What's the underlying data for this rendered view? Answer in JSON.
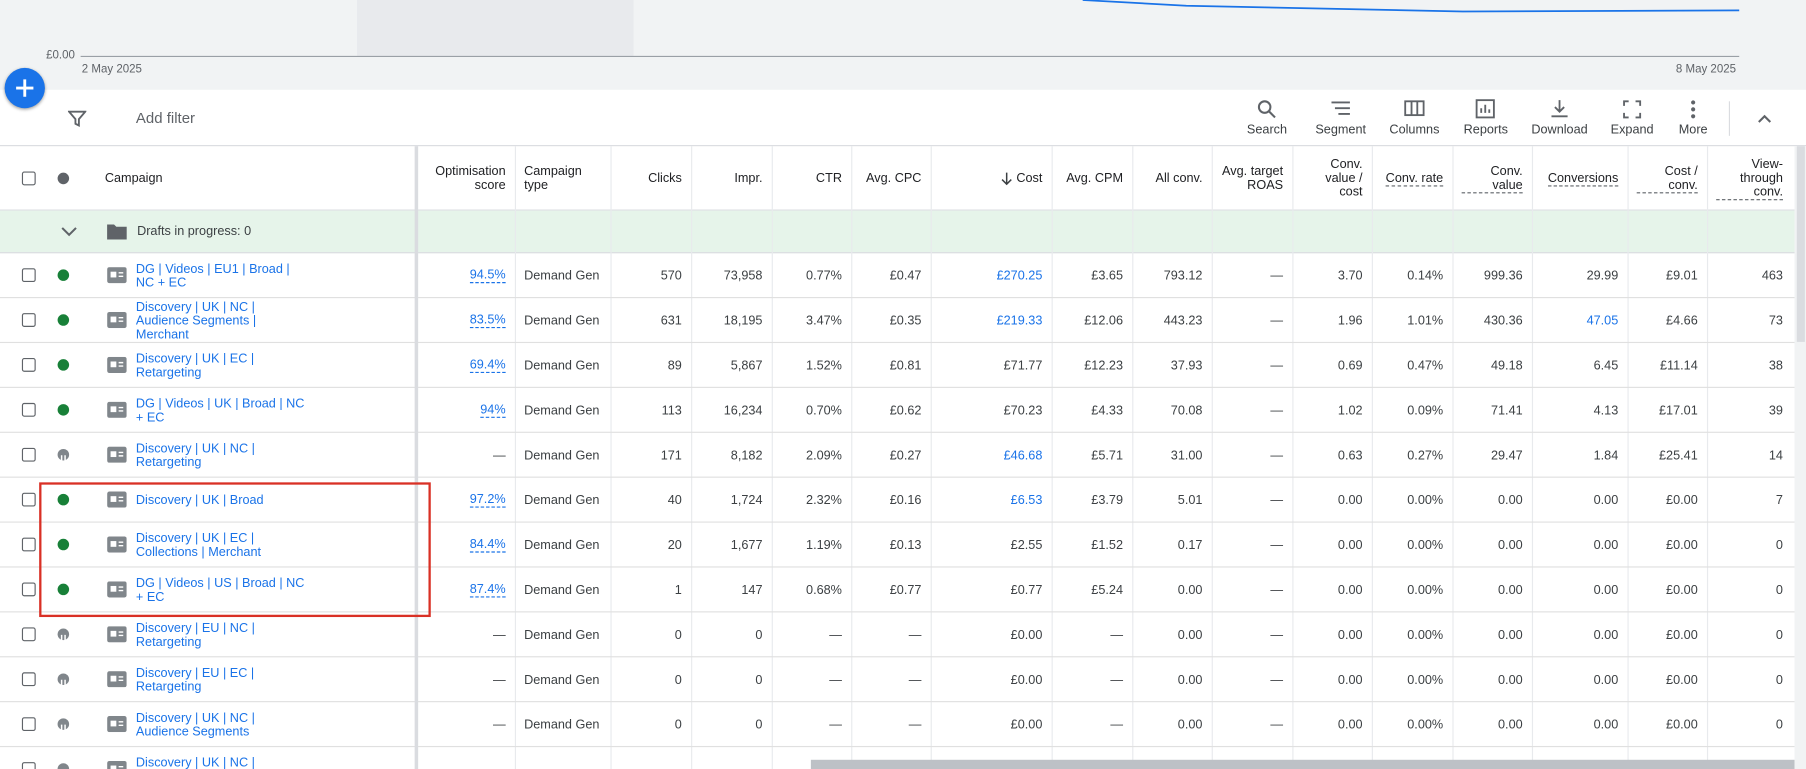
{
  "chart": {
    "y_label": "£0.00",
    "x_start": "2 May 2025",
    "x_end": "8 May 2025"
  },
  "toolbar": {
    "filter": "Add filter",
    "buttons": [
      "Search",
      "Segment",
      "Columns",
      "Reports",
      "Download",
      "Expand",
      "More"
    ]
  },
  "table": {
    "columns": [
      "Campaign",
      "Optimisation score",
      "Campaign type",
      "Clicks",
      "Impr.",
      "CTR",
      "Avg. CPC",
      "Cost",
      "Avg. CPM",
      "All conv.",
      "Avg. target ROAS",
      "Conv. value / cost",
      "Conv. rate",
      "Conv. value",
      "Conversions",
      "Cost / conv.",
      "View-through conv."
    ],
    "drafts": "Drafts in progress: 0",
    "rows": [
      {
        "status": "enabled",
        "links": [
          7
        ],
        "cells": [
          "DG | Videos | EU1 | Broad | NC + EC",
          "94.5%",
          "Demand Gen",
          "570",
          "73,958",
          "0.77%",
          "£0.47",
          "£270.25",
          "£3.65",
          "793.12",
          "—",
          "3.70",
          "0.14%",
          "999.36",
          "29.99",
          "£9.01",
          "463"
        ]
      },
      {
        "status": "enabled",
        "links": [
          7,
          14
        ],
        "cells": [
          "Discovery | UK | NC | Audience Segments | Merchant",
          "83.5%",
          "Demand Gen",
          "631",
          "18,195",
          "3.47%",
          "£0.35",
          "£219.33",
          "£12.06",
          "443.23",
          "—",
          "1.96",
          "1.01%",
          "430.36",
          "47.05",
          "£4.66",
          "73"
        ]
      },
      {
        "status": "enabled",
        "links": [],
        "cells": [
          "Discovery | UK | EC | Retargeting",
          "69.4%",
          "Demand Gen",
          "89",
          "5,867",
          "1.52%",
          "£0.81",
          "£71.77",
          "£12.23",
          "37.93",
          "—",
          "0.69",
          "0.47%",
          "49.18",
          "6.45",
          "£11.14",
          "38"
        ]
      },
      {
        "status": "enabled",
        "links": [],
        "cells": [
          "DG | Videos | UK | Broad | NC + EC",
          "94%",
          "Demand Gen",
          "113",
          "16,234",
          "0.70%",
          "£0.62",
          "£70.23",
          "£4.33",
          "70.08",
          "—",
          "1.02",
          "0.09%",
          "71.41",
          "4.13",
          "£17.01",
          "39"
        ]
      },
      {
        "status": "paused",
        "links": [
          7
        ],
        "cells": [
          "Discovery | UK | NC | Retargeting",
          "—",
          "Demand Gen",
          "171",
          "8,182",
          "2.09%",
          "£0.27",
          "£46.68",
          "£5.71",
          "31.00",
          "—",
          "0.63",
          "0.27%",
          "29.47",
          "1.84",
          "£25.41",
          "14"
        ]
      },
      {
        "status": "enabled",
        "links": [
          7
        ],
        "cells": [
          "Discovery | UK | Broad",
          "97.2%",
          "Demand Gen",
          "40",
          "1,724",
          "2.32%",
          "£0.16",
          "£6.53",
          "£3.79",
          "5.01",
          "—",
          "0.00",
          "0.00%",
          "0.00",
          "0.00",
          "£0.00",
          "7"
        ]
      },
      {
        "status": "enabled",
        "links": [],
        "cells": [
          "Discovery | UK | EC | Collections  | Merchant",
          "84.4%",
          "Demand Gen",
          "20",
          "1,677",
          "1.19%",
          "£0.13",
          "£2.55",
          "£1.52",
          "0.17",
          "—",
          "0.00",
          "0.00%",
          "0.00",
          "0.00",
          "£0.00",
          "0"
        ]
      },
      {
        "status": "enabled",
        "links": [],
        "cells": [
          "DG | Videos | US | Broad | NC + EC",
          "87.4%",
          "Demand Gen",
          "1",
          "147",
          "0.68%",
          "£0.77",
          "£0.77",
          "£5.24",
          "0.00",
          "—",
          "0.00",
          "0.00%",
          "0.00",
          "0.00",
          "£0.00",
          "0"
        ]
      },
      {
        "status": "paused",
        "links": [],
        "cells": [
          "Discovery | EU | NC | Retargeting",
          "—",
          "Demand Gen",
          "0",
          "0",
          "—",
          "—",
          "£0.00",
          "—",
          "0.00",
          "—",
          "0.00",
          "0.00%",
          "0.00",
          "0.00",
          "£0.00",
          "0"
        ]
      },
      {
        "status": "paused",
        "links": [],
        "cells": [
          "Discovery | EU | EC | Retargeting",
          "—",
          "Demand Gen",
          "0",
          "0",
          "—",
          "—",
          "£0.00",
          "—",
          "0.00",
          "—",
          "0.00",
          "0.00%",
          "0.00",
          "0.00",
          "£0.00",
          "0"
        ]
      },
      {
        "status": "paused",
        "links": [],
        "cells": [
          "Discovery | UK | NC | Audience Segments",
          "—",
          "Demand Gen",
          "0",
          "0",
          "—",
          "—",
          "£0.00",
          "—",
          "0.00",
          "—",
          "0.00",
          "0.00%",
          "0.00",
          "0.00",
          "£0.00",
          "0"
        ]
      },
      {
        "status": "paused",
        "links": [],
        "cells": [
          "Discovery | UK | NC | Audience"
        ]
      }
    ]
  }
}
